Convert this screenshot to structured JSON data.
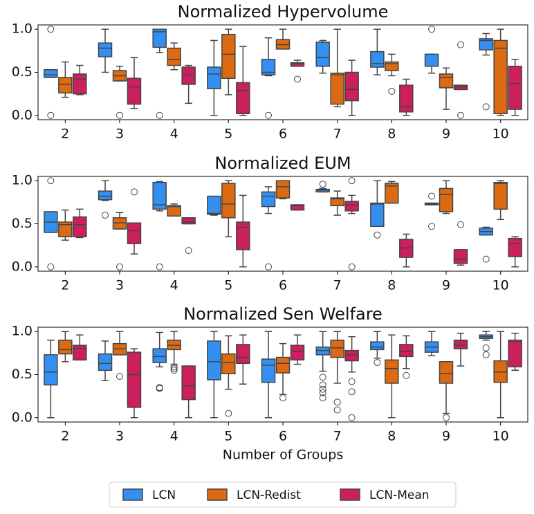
{
  "chart_data": [
    {
      "type": "box",
      "title": "Normalized Hypervolume",
      "categories": [
        "2",
        "3",
        "4",
        "5",
        "6",
        "7",
        "8",
        "9",
        "10"
      ],
      "ylim": [
        -0.05,
        1.05
      ],
      "yticks": [
        {
          "value": 0,
          "label": "0.0"
        },
        {
          "value": 0.5,
          "label": "0.5"
        },
        {
          "value": 1,
          "label": "1.0"
        }
      ],
      "series": [
        {
          "name": "LCN",
          "color": "#3390f0",
          "values": [
            {
              "min": 0.44,
              "q1": 0.44,
              "median": 0.47,
              "q3": 0.53,
              "max": 0.53,
              "fliers": [
                1.0,
                0.0
              ]
            },
            {
              "min": 0.5,
              "q1": 0.68,
              "median": 0.78,
              "q3": 0.84,
              "max": 1.0,
              "fliers": []
            },
            {
              "min": 0.73,
              "q1": 0.79,
              "median": 0.97,
              "q3": 1.0,
              "max": 1.0,
              "fliers": [
                0.0
              ]
            },
            {
              "min": 0.0,
              "q1": 0.31,
              "median": 0.48,
              "q3": 0.56,
              "max": 0.87,
              "fliers": []
            },
            {
              "min": 0.46,
              "q1": 0.47,
              "median": 0.5,
              "q3": 0.65,
              "max": 0.9,
              "fliers": [
                0.0
              ]
            },
            {
              "min": 0.49,
              "q1": 0.57,
              "median": 0.67,
              "q3": 0.85,
              "max": 0.87,
              "fliers": []
            },
            {
              "min": 0.47,
              "q1": 0.56,
              "median": 0.6,
              "q3": 0.74,
              "max": 1.0,
              "fliers": []
            },
            {
              "min": 0.49,
              "q1": 0.57,
              "median": 0.57,
              "q3": 0.71,
              "max": 0.71,
              "fliers": [
                1.0
              ]
            },
            {
              "min": 0.7,
              "q1": 0.76,
              "median": 0.87,
              "q3": 0.89,
              "max": 0.95,
              "fliers": [
                0.1
              ]
            }
          ]
        },
        {
          "name": "LCN-Redist",
          "color": "#dc6a13",
          "values": [
            {
              "min": 0.21,
              "q1": 0.26,
              "median": 0.36,
              "q3": 0.44,
              "max": 0.62,
              "fliers": []
            },
            {
              "min": 0.4,
              "q1": 0.4,
              "median": 0.46,
              "q3": 0.52,
              "max": 0.57,
              "fliers": [
                0.0
              ]
            },
            {
              "min": 0.53,
              "q1": 0.58,
              "median": 0.65,
              "q3": 0.78,
              "max": 0.84,
              "fliers": []
            },
            {
              "min": 0.24,
              "q1": 0.43,
              "median": 0.71,
              "q3": 0.94,
              "max": 1.0,
              "fliers": []
            },
            {
              "min": 0.77,
              "q1": 0.77,
              "median": 0.82,
              "q3": 0.88,
              "max": 1.0,
              "fliers": []
            },
            {
              "min": 0.1,
              "q1": 0.13,
              "median": 0.47,
              "q3": 0.49,
              "max": 1.0,
              "fliers": []
            },
            {
              "min": 0.46,
              "q1": 0.52,
              "median": 0.6,
              "q3": 0.62,
              "max": 0.71,
              "fliers": [
                0.28
              ]
            },
            {
              "min": 0.07,
              "q1": 0.32,
              "median": 0.44,
              "q3": 0.48,
              "max": 0.55,
              "fliers": []
            },
            {
              "min": 0.0,
              "q1": 0.02,
              "median": 0.78,
              "q3": 0.87,
              "max": 1.0,
              "fliers": []
            }
          ]
        },
        {
          "name": "LCN-Mean",
          "color": "#cc1f5d",
          "values": [
            {
              "min": 0.24,
              "q1": 0.25,
              "median": 0.42,
              "q3": 0.48,
              "max": 0.58,
              "fliers": []
            },
            {
              "min": 0.08,
              "q1": 0.13,
              "median": 0.33,
              "q3": 0.43,
              "max": 0.67,
              "fliers": []
            },
            {
              "min": 0.14,
              "q1": 0.36,
              "median": 0.47,
              "q3": 0.56,
              "max": 0.58,
              "fliers": []
            },
            {
              "min": 0.0,
              "q1": 0.02,
              "median": 0.29,
              "q3": 0.38,
              "max": 0.8,
              "fliers": []
            },
            {
              "min": 0.57,
              "q1": 0.57,
              "median": 0.6,
              "q3": 0.61,
              "max": 0.64,
              "fliers": [
                0.42
              ]
            },
            {
              "min": 0.0,
              "q1": 0.17,
              "median": 0.3,
              "q3": 0.5,
              "max": 0.64,
              "fliers": []
            },
            {
              "min": 0.0,
              "q1": 0.04,
              "median": 0.1,
              "q3": 0.35,
              "max": 0.42,
              "fliers": []
            },
            {
              "min": 0.3,
              "q1": 0.3,
              "median": 0.33,
              "q3": 0.35,
              "max": 0.35,
              "fliers": [
                0.82,
                0.0
              ]
            },
            {
              "min": 0.0,
              "q1": 0.07,
              "median": 0.37,
              "q3": 0.57,
              "max": 0.65,
              "fliers": []
            }
          ]
        }
      ]
    },
    {
      "type": "box",
      "title": "Normalized EUM",
      "categories": [
        "2",
        "3",
        "4",
        "5",
        "6",
        "7",
        "8",
        "9",
        "10"
      ],
      "ylim": [
        -0.05,
        1.05
      ],
      "yticks": [
        {
          "value": 0,
          "label": "0.0"
        },
        {
          "value": 0.5,
          "label": "0.5"
        },
        {
          "value": 1,
          "label": "1.0"
        }
      ],
      "series": [
        {
          "color": "#3390f0",
          "values": [
            {
              "min": 0.4,
              "q1": 0.4,
              "median": 0.52,
              "q3": 0.64,
              "max": 0.64,
              "fliers": [
                1.0,
                0.0
              ]
            },
            {
              "min": 0.77,
              "q1": 0.78,
              "median": 0.82,
              "q3": 0.88,
              "max": 1.0,
              "fliers": [
                0.6
              ]
            },
            {
              "min": 0.65,
              "q1": 0.67,
              "median": 0.72,
              "q3": 0.98,
              "max": 0.99,
              "fliers": [
                0.0
              ]
            },
            {
              "min": 0.6,
              "q1": 0.61,
              "median": 0.62,
              "q3": 0.82,
              "max": 0.82,
              "fliers": []
            },
            {
              "min": 0.62,
              "q1": 0.7,
              "median": 0.82,
              "q3": 0.87,
              "max": 0.93,
              "fliers": [
                0.0
              ]
            },
            {
              "min": 0.87,
              "q1": 0.87,
              "median": 0.89,
              "q3": 0.9,
              "max": 0.91,
              "fliers": [
                0.96
              ]
            },
            {
              "min": 0.47,
              "q1": 0.47,
              "median": 0.73,
              "q3": 0.74,
              "max": 1.0,
              "fliers": [
                0.37
              ]
            },
            {
              "min": 0.72,
              "q1": 0.72,
              "median": 0.73,
              "q3": 0.74,
              "max": 0.74,
              "fliers": [
                0.82,
                0.47
              ]
            },
            {
              "min": 0.37,
              "q1": 0.37,
              "median": 0.41,
              "q3": 0.45,
              "max": 0.46,
              "fliers": [
                0.09
              ]
            }
          ]
        },
        {
          "color": "#dc6a13",
          "values": [
            {
              "min": 0.31,
              "q1": 0.35,
              "median": 0.49,
              "q3": 0.52,
              "max": 0.66,
              "fliers": []
            },
            {
              "min": 0.44,
              "q1": 0.44,
              "median": 0.51,
              "q3": 0.57,
              "max": 0.63,
              "fliers": [
                0.0
              ]
            },
            {
              "min": 0.59,
              "q1": 0.59,
              "median": 0.7,
              "q3": 0.71,
              "max": 0.73,
              "fliers": []
            },
            {
              "min": 0.35,
              "q1": 0.57,
              "median": 0.73,
              "q3": 0.97,
              "max": 1.0,
              "fliers": []
            },
            {
              "min": 0.79,
              "q1": 0.8,
              "median": 0.93,
              "q3": 1.0,
              "max": 1.0,
              "fliers": []
            },
            {
              "min": 0.6,
              "q1": 0.71,
              "median": 0.79,
              "q3": 0.8,
              "max": 0.88,
              "fliers": []
            },
            {
              "min": 0.74,
              "q1": 0.74,
              "median": 0.94,
              "q3": 0.97,
              "max": 0.99,
              "fliers": []
            },
            {
              "min": 0.62,
              "q1": 0.64,
              "median": 0.84,
              "q3": 0.91,
              "max": 1.0,
              "fliers": []
            },
            {
              "min": 0.55,
              "q1": 0.67,
              "median": 0.97,
              "q3": 0.98,
              "max": 1.0,
              "fliers": []
            }
          ]
        },
        {
          "color": "#cc1f5d",
          "values": [
            {
              "min": 0.34,
              "q1": 0.35,
              "median": 0.49,
              "q3": 0.58,
              "max": 0.67,
              "fliers": []
            },
            {
              "min": 0.15,
              "q1": 0.27,
              "median": 0.42,
              "q3": 0.51,
              "max": 0.51,
              "fliers": [
                0.87
              ]
            },
            {
              "min": 0.5,
              "q1": 0.5,
              "median": 0.52,
              "q3": 0.57,
              "max": 0.57,
              "fliers": [
                0.19
              ]
            },
            {
              "min": 0.0,
              "q1": 0.2,
              "median": 0.46,
              "q3": 0.52,
              "max": 0.83,
              "fliers": []
            },
            {
              "min": 0.66,
              "q1": 0.66,
              "median": 0.71,
              "q3": 0.72,
              "max": 0.72,
              "fliers": []
            },
            {
              "min": 0.62,
              "q1": 0.65,
              "median": 0.72,
              "q3": 0.76,
              "max": 0.83,
              "fliers": [
                1.0,
                0.0
              ]
            },
            {
              "min": 0.0,
              "q1": 0.11,
              "median": 0.22,
              "q3": 0.32,
              "max": 0.38,
              "fliers": []
            },
            {
              "min": 0.02,
              "q1": 0.04,
              "median": 0.09,
              "q3": 0.2,
              "max": 0.2,
              "fliers": [
                0.49
              ]
            },
            {
              "min": 0.0,
              "q1": 0.12,
              "median": 0.27,
              "q3": 0.33,
              "max": 0.35,
              "fliers": []
            }
          ]
        }
      ]
    },
    {
      "type": "box",
      "title": "Normalized Sen Welfare",
      "xlabel": "Number of Groups",
      "categories": [
        "2",
        "3",
        "4",
        "5",
        "6",
        "7",
        "8",
        "9",
        "10"
      ],
      "ylim": [
        -0.05,
        1.05
      ],
      "yticks": [
        {
          "value": 0,
          "label": "0.0"
        },
        {
          "value": 0.5,
          "label": "0.5"
        },
        {
          "value": 1,
          "label": "1.0"
        }
      ],
      "series": [
        {
          "color": "#3390f0",
          "values": [
            {
              "min": 0.0,
              "q1": 0.38,
              "median": 0.53,
              "q3": 0.73,
              "max": 0.9,
              "fliers": []
            },
            {
              "min": 0.43,
              "q1": 0.55,
              "median": 0.63,
              "q3": 0.74,
              "max": 0.89,
              "fliers": []
            },
            {
              "min": 0.59,
              "q1": 0.64,
              "median": 0.71,
              "q3": 0.8,
              "max": 0.99,
              "fliers": [
                0.35,
                0.34
              ]
            },
            {
              "min": 0.0,
              "q1": 0.44,
              "median": 0.65,
              "q3": 0.89,
              "max": 1.0,
              "fliers": []
            },
            {
              "min": 0.0,
              "q1": 0.41,
              "median": 0.61,
              "q3": 0.68,
              "max": 1.0,
              "fliers": []
            },
            {
              "min": 0.54,
              "q1": 0.73,
              "median": 0.78,
              "q3": 0.82,
              "max": 1.0,
              "fliers": [
                0.47,
                0.38,
                0.33,
                0.29,
                0.23
              ]
            },
            {
              "min": 0.69,
              "q1": 0.79,
              "median": 0.82,
              "q3": 0.88,
              "max": 1.0,
              "fliers": [
                0.64
              ]
            },
            {
              "min": 0.72,
              "q1": 0.76,
              "median": 0.82,
              "q3": 0.88,
              "max": 1.0,
              "fliers": []
            },
            {
              "min": 0.9,
              "q1": 0.92,
              "median": 0.94,
              "q3": 0.96,
              "max": 1.0,
              "fliers": [
                0.81,
                0.73
              ]
            }
          ]
        },
        {
          "color": "#dc6a13",
          "values": [
            {
              "min": 0.65,
              "q1": 0.74,
              "median": 0.79,
              "q3": 0.9,
              "max": 1.0,
              "fliers": []
            },
            {
              "min": 0.73,
              "q1": 0.73,
              "median": 0.8,
              "q3": 0.86,
              "max": 1.0,
              "fliers": [
                0.48
              ]
            },
            {
              "min": 0.62,
              "q1": 0.79,
              "median": 0.84,
              "q3": 0.9,
              "max": 1.0,
              "fliers": [
                0.59,
                0.57,
                0.55
              ]
            },
            {
              "min": 0.33,
              "q1": 0.51,
              "median": 0.64,
              "q3": 0.74,
              "max": 0.95,
              "fliers": [
                0.05
              ]
            },
            {
              "min": 0.27,
              "q1": 0.52,
              "median": 0.63,
              "q3": 0.7,
              "max": 0.86,
              "fliers": [
                0.23
              ]
            },
            {
              "min": 0.4,
              "q1": 0.7,
              "median": 0.81,
              "q3": 0.9,
              "max": 1.0,
              "fliers": [
                0.18,
                0.09
              ]
            },
            {
              "min": 0.0,
              "q1": 0.4,
              "median": 0.57,
              "q3": 0.67,
              "max": 0.96,
              "fliers": []
            },
            {
              "min": 0.05,
              "q1": 0.4,
              "median": 0.51,
              "q3": 0.65,
              "max": 0.65,
              "fliers": [
                0.0
              ]
            },
            {
              "min": 0.0,
              "q1": 0.41,
              "median": 0.53,
              "q3": 0.66,
              "max": 1.0,
              "fliers": []
            }
          ]
        },
        {
          "color": "#cc1f5d",
          "values": [
            {
              "min": 0.67,
              "q1": 0.67,
              "median": 0.8,
              "q3": 0.84,
              "max": 0.96,
              "fliers": []
            },
            {
              "min": 0.0,
              "q1": 0.12,
              "median": 0.5,
              "q3": 0.76,
              "max": 0.8,
              "fliers": []
            },
            {
              "min": 0.0,
              "q1": 0.21,
              "median": 0.37,
              "q3": 0.6,
              "max": 0.6,
              "fliers": []
            },
            {
              "min": 0.39,
              "q1": 0.63,
              "median": 0.7,
              "q3": 0.85,
              "max": 0.96,
              "fliers": []
            },
            {
              "min": 0.62,
              "q1": 0.67,
              "median": 0.77,
              "q3": 0.84,
              "max": 0.96,
              "fliers": []
            },
            {
              "min": 0.53,
              "q1": 0.66,
              "median": 0.73,
              "q3": 0.78,
              "max": 0.94,
              "fliers": [
                0.42,
                0.3,
                0.0
              ]
            },
            {
              "min": 0.57,
              "q1": 0.71,
              "median": 0.77,
              "q3": 0.85,
              "max": 0.95,
              "fliers": [
                0.49
              ]
            },
            {
              "min": 0.6,
              "q1": 0.8,
              "median": 0.84,
              "q3": 0.9,
              "max": 0.98,
              "fliers": []
            },
            {
              "min": 0.55,
              "q1": 0.59,
              "median": 0.88,
              "q3": 0.9,
              "max": 0.98,
              "fliers": []
            }
          ]
        }
      ]
    }
  ]
}
